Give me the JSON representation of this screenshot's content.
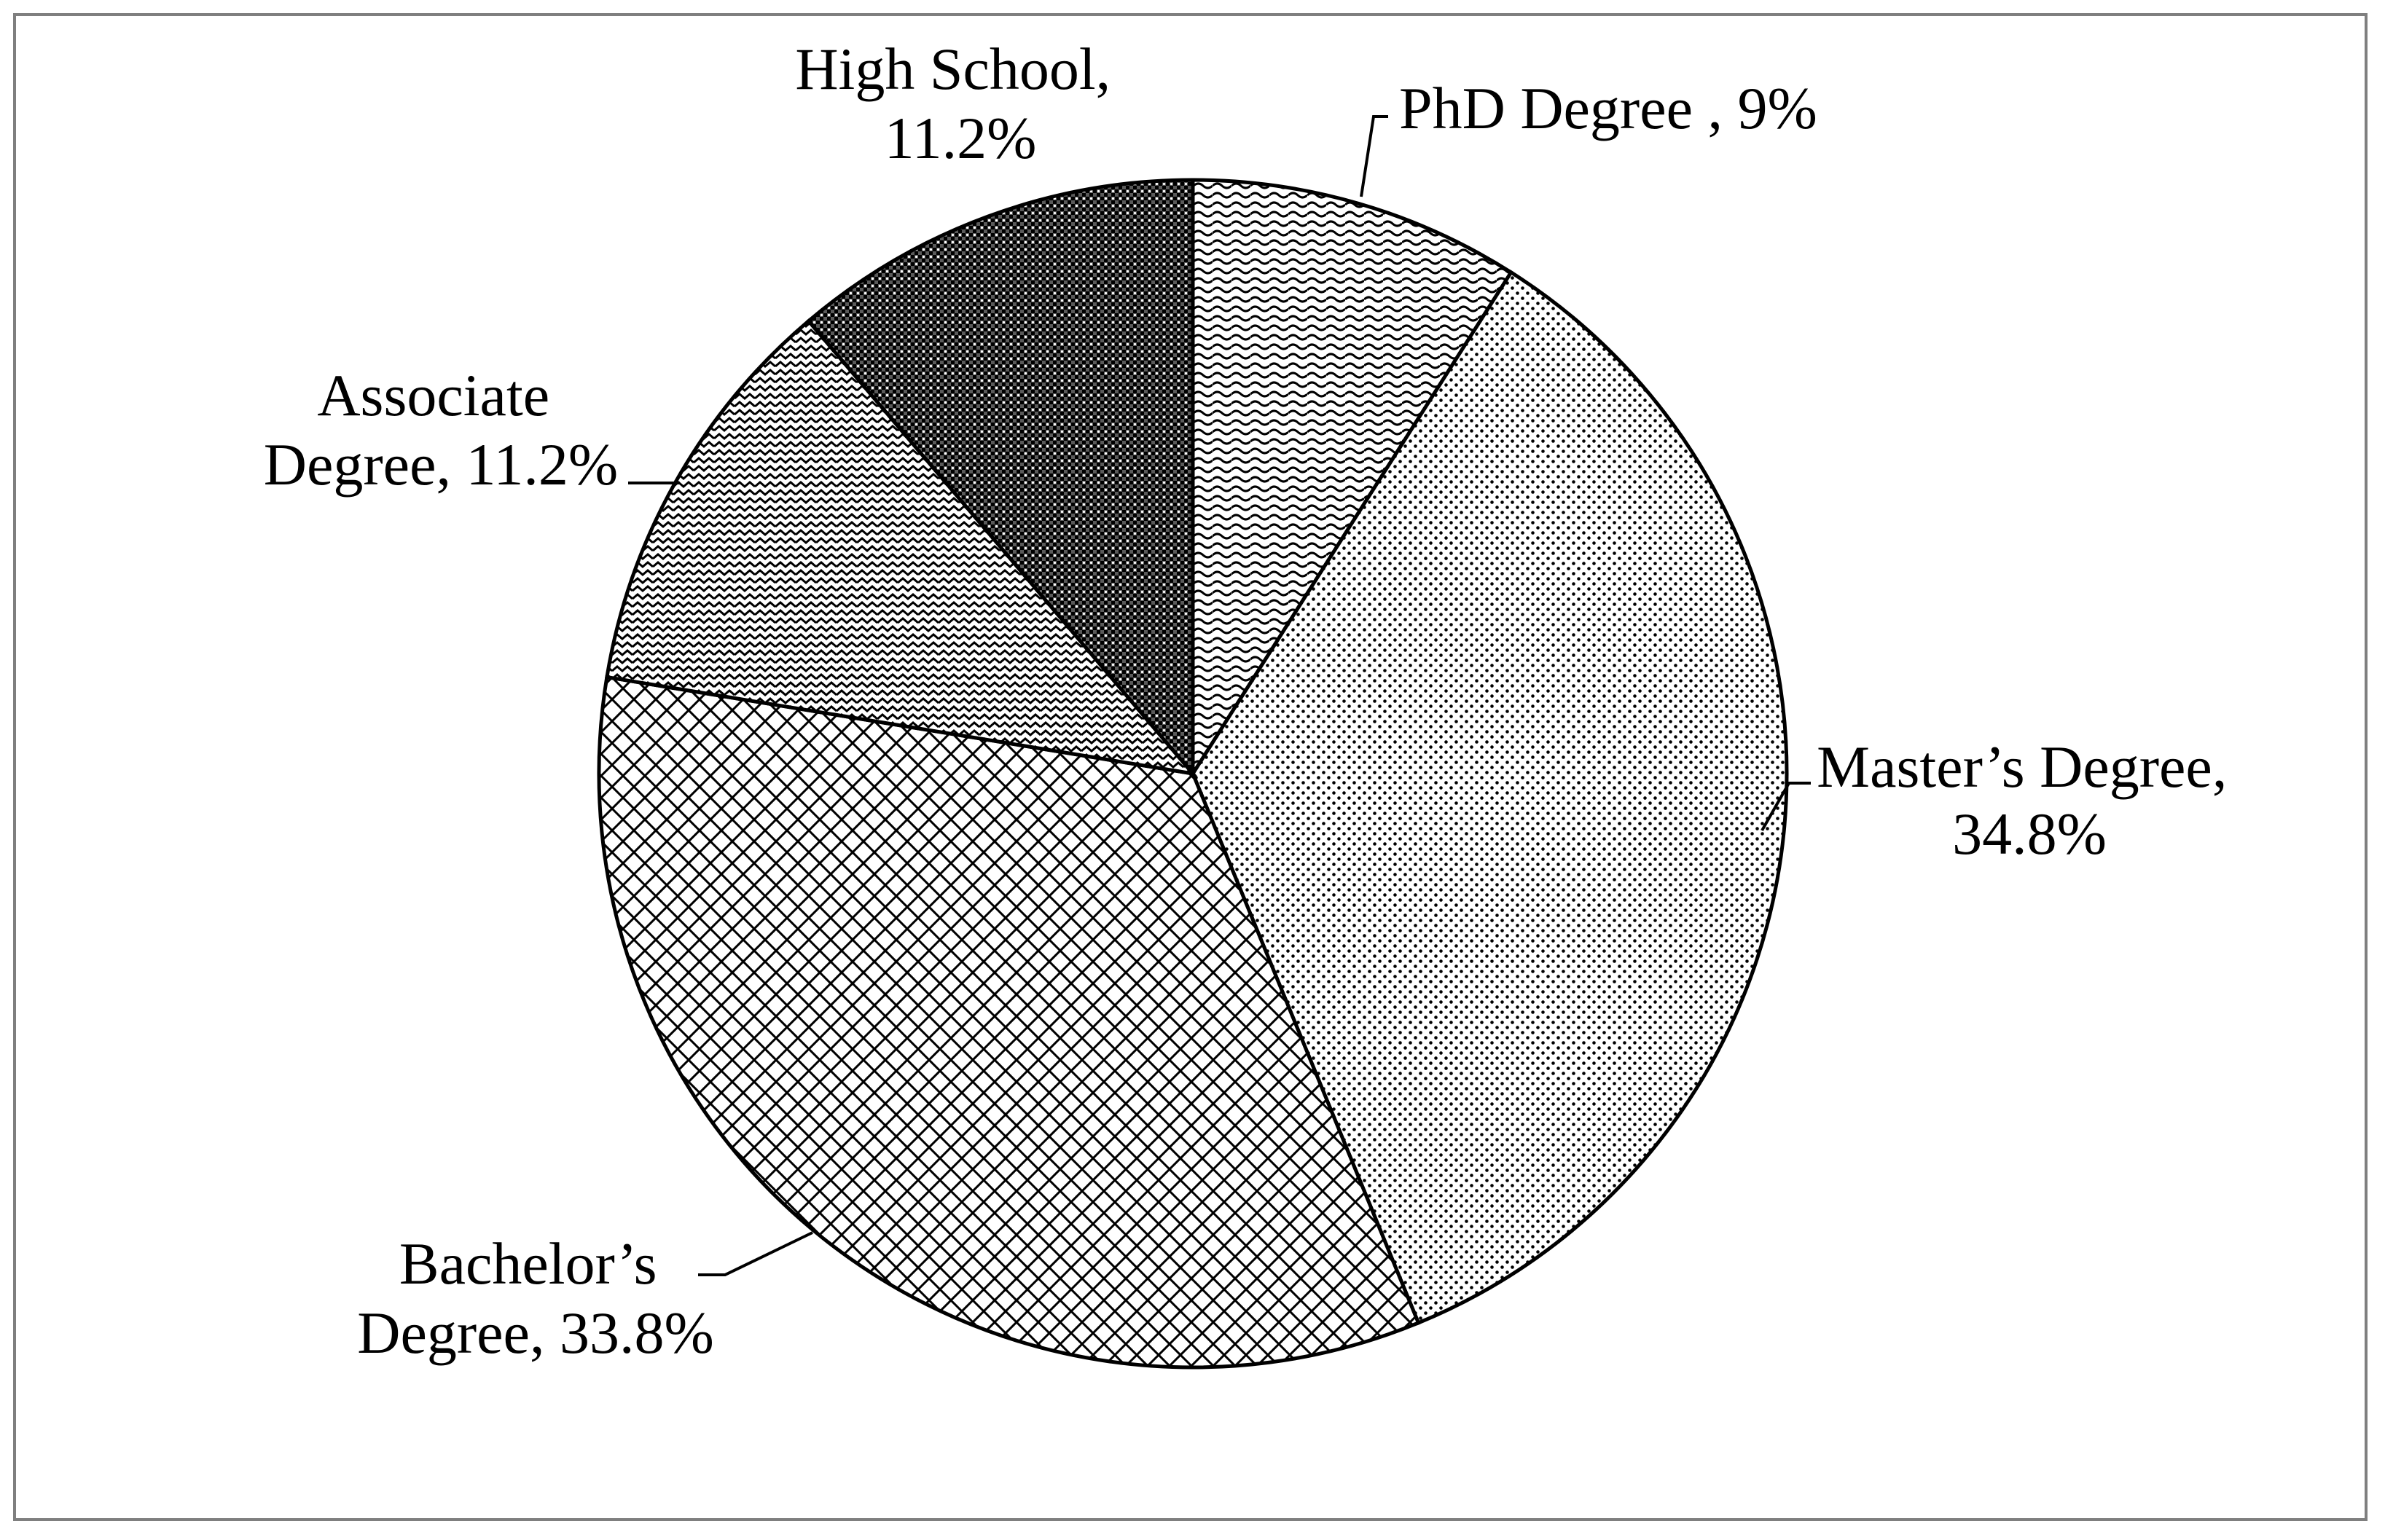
{
  "chart_data": {
    "type": "pie",
    "title": "",
    "start_angle_deg": 0,
    "direction": "clockwise",
    "slices": [
      {
        "category": "PhD Degree",
        "value": 9.0,
        "label_lines": [
          "PhD Degree , 9%"
        ],
        "pattern": "wave"
      },
      {
        "category": "Master’s Degree",
        "value": 34.8,
        "label_lines": [
          "Master’s Degree,",
          "34.8%"
        ],
        "pattern": "fine-dots"
      },
      {
        "category": "Bachelor’s Degree",
        "value": 33.8,
        "label_lines": [
          "Bachelor’s",
          "Degree, 33.8%"
        ],
        "pattern": "diamond-grid"
      },
      {
        "category": "Associate Degree",
        "value": 11.2,
        "label_lines": [
          "Associate",
          "Degree, 11.2%"
        ],
        "pattern": "zigzag"
      },
      {
        "category": "High School",
        "value": 11.2,
        "label_lines": [
          "High School,",
          "11.2%"
        ],
        "pattern": "dense-check"
      }
    ]
  }
}
